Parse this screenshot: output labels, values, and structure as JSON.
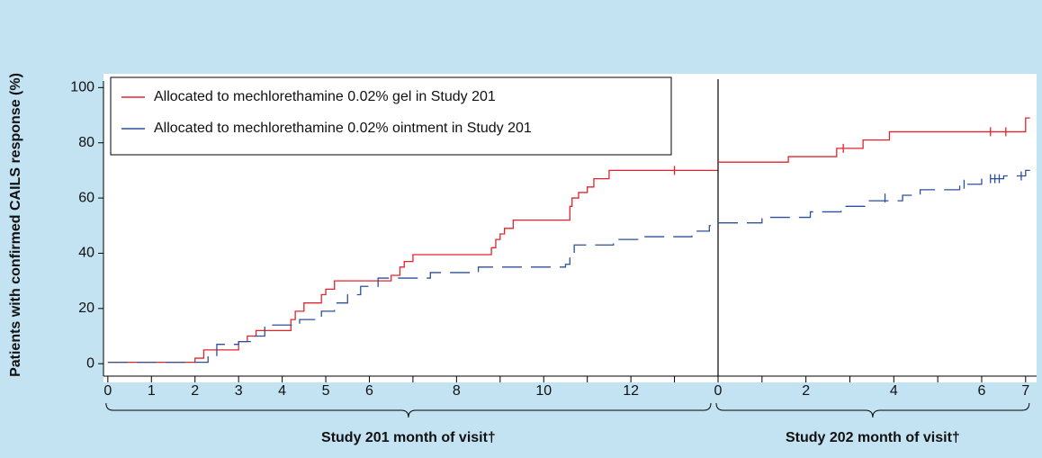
{
  "chart_data": [
    {
      "type": "line",
      "step": "post",
      "ylabel": "Patients with confirmed CAILS response (%)",
      "xlabel": "Study 201 month of visit†",
      "legend": "upper left",
      "xlim": [
        -0.1,
        14
      ],
      "xticks": [
        0,
        1,
        2,
        3,
        4,
        5,
        6,
        8,
        10,
        12
      ],
      "xminor": [
        7,
        9,
        11,
        13
      ],
      "ylim": [
        -4.5,
        105
      ],
      "yticks": [
        0,
        20,
        40,
        60,
        80,
        100
      ],
      "series": [
        {
          "name": "Allocated to mechlorethamine 0.02% gel in Study 201",
          "color": "#e3232c",
          "dash": false,
          "x": [
            0,
            2.0,
            2.2,
            3.0,
            3.2,
            3.4,
            4.2,
            4.3,
            4.5,
            4.9,
            5.0,
            5.2,
            6.5,
            6.7,
            6.8,
            7.0,
            8.8,
            8.9,
            9.0,
            9.1,
            9.3,
            10.6,
            10.65,
            10.8,
            11.0,
            11.15,
            11.5,
            14
          ],
          "values": [
            0.5,
            2,
            5,
            8,
            10,
            12,
            16,
            19,
            22,
            25,
            27,
            30,
            32,
            35,
            37,
            39.5,
            42,
            45,
            47,
            49,
            52,
            57,
            60,
            62,
            64,
            67,
            70,
            70
          ],
          "censored": {
            "x": [
              13.0
            ],
            "values": [
              70
            ]
          }
        },
        {
          "name": "Allocated to mechlorethamine 0.02% ointment in Study 201",
          "color": "#2f4f98",
          "dash": true,
          "x": [
            0,
            2.3,
            2.5,
            3.0,
            3.3,
            3.6,
            4.4,
            4.9,
            5.2,
            5.5,
            5.8,
            6.2,
            7.4,
            8.5,
            10.5,
            10.6,
            10.7,
            11.6,
            12.2,
            13.4,
            13.8,
            14
          ],
          "values": [
            0.5,
            2.5,
            7,
            8,
            10,
            14,
            16,
            19,
            22,
            25,
            28,
            31,
            33,
            35,
            36,
            39,
            43,
            45,
            46,
            48,
            50,
            50
          ]
        }
      ]
    },
    {
      "type": "line",
      "step": "post",
      "xlabel": "Study 202 month of visit†",
      "xlim": [
        0,
        7.25
      ],
      "xticks": [
        0,
        2,
        4,
        6,
        7
      ],
      "xminor": [
        1,
        3,
        5
      ],
      "ylim": [
        -4.5,
        105
      ],
      "series": [
        {
          "color": "#e3232c",
          "dash": false,
          "x": [
            0,
            1.6,
            2.7,
            3.3,
            3.9,
            7.0,
            7.1
          ],
          "values": [
            73,
            75,
            78,
            81,
            84,
            89,
            89
          ],
          "censored": {
            "x": [
              2.85,
              6.2,
              6.55
            ],
            "values": [
              78,
              84,
              84
            ]
          }
        },
        {
          "color": "#2f4f98",
          "dash": true,
          "x": [
            0,
            1.0,
            2.1,
            2.8,
            3.4,
            4.2,
            4.6,
            5.5,
            6.0,
            6.5,
            7.0,
            7.1
          ],
          "values": [
            51,
            53,
            55,
            57,
            59,
            61,
            63,
            65,
            67,
            68,
            70,
            70
          ],
          "censored": {
            "x": [
              3.8,
              5.6,
              6.2,
              6.3,
              6.4,
              6.9
            ],
            "values": [
              60,
              65,
              67,
              67,
              67,
              68
            ]
          }
        }
      ]
    }
  ]
}
